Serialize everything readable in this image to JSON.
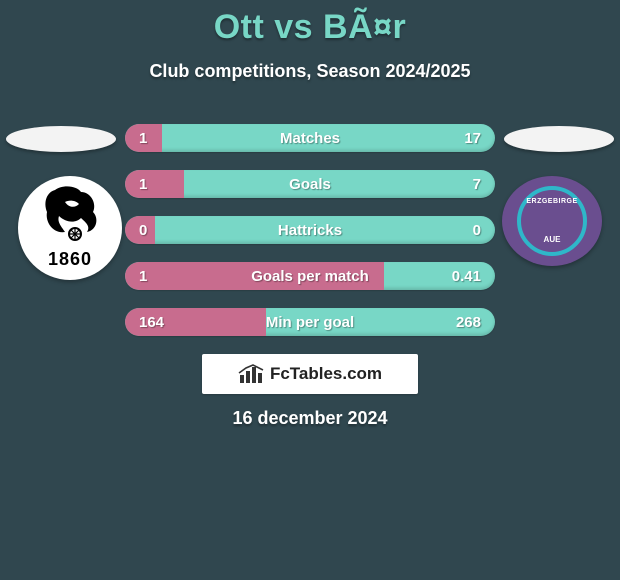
{
  "header": {
    "title": "Ott vs BÃ¤r",
    "subtitle": "Club competitions, Season 2024/2025"
  },
  "colors": {
    "background": "#30474f",
    "accent": "#78d7c6",
    "left_fill": "#c86c8e",
    "text": "#ffffff"
  },
  "stats": {
    "rows": [
      {
        "label": "Matches",
        "left": "1",
        "right": "17",
        "left_pct": 10
      },
      {
        "label": "Goals",
        "left": "1",
        "right": "7",
        "left_pct": 16
      },
      {
        "label": "Hattricks",
        "left": "0",
        "right": "0",
        "left_pct": 8
      },
      {
        "label": "Goals per match",
        "left": "1",
        "right": "0.41",
        "left_pct": 70
      },
      {
        "label": "Min per goal",
        "left": "164",
        "right": "268",
        "left_pct": 38
      }
    ]
  },
  "brand": {
    "text": "FcTables.com"
  },
  "date": "16 december 2024",
  "teams": {
    "left": {
      "name": "1860",
      "year_text": "1860"
    },
    "right": {
      "name": "FC Erzgebirge Aue",
      "top_text": "ERZGEBIRGE",
      "bottom_text": "AUE"
    }
  }
}
